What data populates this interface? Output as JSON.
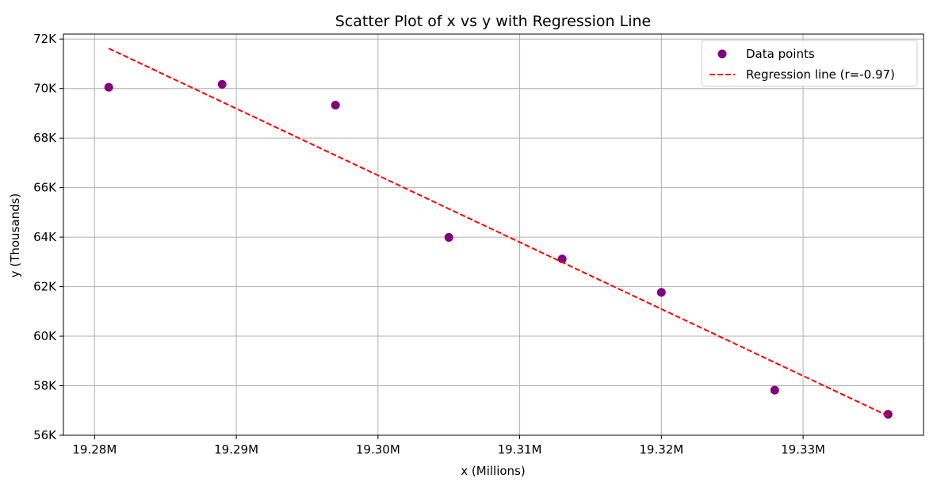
{
  "chart_data": {
    "type": "scatter",
    "title": "Scatter Plot of x vs y with Regression Line",
    "xlabel": "x (Millions)",
    "ylabel": "y (Thousands)",
    "x_ticks": [
      19.28,
      19.29,
      19.3,
      19.31,
      19.32,
      19.33
    ],
    "x_tick_labels": [
      "19.28M",
      "19.29M",
      "19.30M",
      "19.31M",
      "19.32M",
      "19.33M"
    ],
    "y_ticks": [
      56,
      58,
      60,
      62,
      64,
      66,
      68,
      70,
      72
    ],
    "y_tick_labels": [
      "56K",
      "58K",
      "60K",
      "62K",
      "64K",
      "66K",
      "68K",
      "70K",
      "72K"
    ],
    "xlim": [
      19.2778,
      19.3385
    ],
    "ylim": [
      56,
      72.2
    ],
    "grid": true,
    "legend_position": "top-right",
    "series": [
      {
        "name": "Data points",
        "kind": "scatter",
        "color": "#800080",
        "x": [
          19.281,
          19.289,
          19.297,
          19.305,
          19.313,
          19.32,
          19.328,
          19.336
        ],
        "y": [
          70.05,
          70.17,
          69.33,
          63.99,
          63.12,
          61.77,
          57.82,
          56.85
        ]
      },
      {
        "name": "Regression line (r=-0.97)",
        "kind": "line",
        "style": "dashed",
        "color": "#ff0000",
        "x": [
          19.281,
          19.336
        ],
        "y": [
          71.62,
          56.78
        ]
      }
    ]
  }
}
